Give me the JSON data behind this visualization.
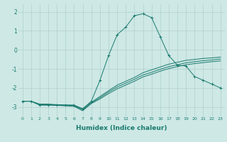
{
  "title": "",
  "xlabel": "Humidex (Indice chaleur)",
  "ylabel": "",
  "background_color": "#cde8e5",
  "grid_color": "#b0d0ce",
  "line_color": "#1a7a6e",
  "xlim": [
    -0.5,
    23.5
  ],
  "ylim": [
    -3.5,
    2.4
  ],
  "yticks": [
    -3,
    -2,
    -1,
    0,
    1,
    2
  ],
  "xticks": [
    0,
    1,
    2,
    3,
    4,
    5,
    6,
    7,
    8,
    9,
    10,
    11,
    12,
    13,
    14,
    15,
    16,
    17,
    18,
    19,
    20,
    21,
    22,
    23
  ],
  "series": [
    {
      "x": [
        0,
        1,
        2,
        3,
        4,
        5,
        6,
        7,
        8,
        9,
        10,
        11,
        12,
        13,
        14,
        15,
        16,
        17,
        18,
        19,
        20,
        21,
        22,
        23
      ],
      "y": [
        -2.7,
        -2.7,
        -2.9,
        -2.9,
        -2.9,
        -2.9,
        -2.9,
        -3.1,
        -2.7,
        -1.6,
        -0.3,
        0.8,
        1.2,
        1.8,
        1.9,
        1.7,
        0.7,
        -0.3,
        -0.8,
        -0.85,
        -1.4,
        -1.6,
        -1.8,
        -2.0
      ],
      "marker": "+"
    },
    {
      "x": [
        0,
        1,
        2,
        3,
        4,
        5,
        6,
        7,
        8,
        9,
        10,
        11,
        12,
        13,
        14,
        15,
        16,
        17,
        18,
        19,
        20,
        21,
        22,
        23
      ],
      "y": [
        -2.7,
        -2.7,
        -2.85,
        -2.85,
        -2.88,
        -2.9,
        -2.92,
        -3.1,
        -2.75,
        -2.45,
        -2.15,
        -1.85,
        -1.65,
        -1.45,
        -1.2,
        -1.05,
        -0.9,
        -0.75,
        -0.65,
        -0.55,
        -0.5,
        -0.45,
        -0.42,
        -0.38
      ],
      "marker": null
    },
    {
      "x": [
        0,
        1,
        2,
        3,
        4,
        5,
        6,
        7,
        8,
        9,
        10,
        11,
        12,
        13,
        14,
        15,
        16,
        17,
        18,
        19,
        20,
        21,
        22,
        23
      ],
      "y": [
        -2.7,
        -2.7,
        -2.88,
        -2.88,
        -2.9,
        -2.92,
        -2.95,
        -3.15,
        -2.8,
        -2.52,
        -2.22,
        -1.95,
        -1.75,
        -1.55,
        -1.32,
        -1.18,
        -1.02,
        -0.88,
        -0.78,
        -0.68,
        -0.62,
        -0.57,
        -0.53,
        -0.48
      ],
      "marker": null
    },
    {
      "x": [
        0,
        1,
        2,
        3,
        4,
        5,
        6,
        7,
        8,
        9,
        10,
        11,
        12,
        13,
        14,
        15,
        16,
        17,
        18,
        19,
        20,
        21,
        22,
        23
      ],
      "y": [
        -2.7,
        -2.7,
        -2.9,
        -2.9,
        -2.92,
        -2.94,
        -2.97,
        -3.2,
        -2.82,
        -2.58,
        -2.3,
        -2.05,
        -1.85,
        -1.65,
        -1.42,
        -1.28,
        -1.12,
        -0.98,
        -0.88,
        -0.78,
        -0.72,
        -0.67,
        -0.62,
        -0.58
      ],
      "marker": null
    }
  ]
}
